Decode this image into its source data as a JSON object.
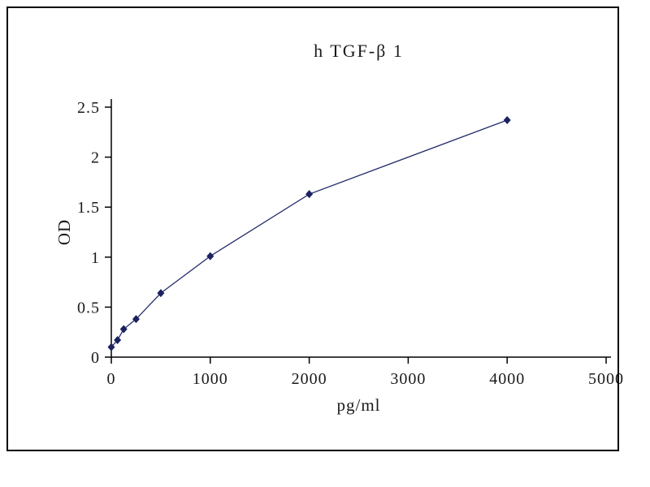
{
  "chart_data": {
    "type": "line",
    "title": "h TGF-β 1",
    "xlabel": "pg/ml",
    "ylabel": "OD",
    "x": [
      0,
      62.5,
      125,
      250,
      500,
      1000,
      2000,
      4000
    ],
    "y": [
      0.1,
      0.17,
      0.28,
      0.38,
      0.64,
      1.01,
      1.63,
      2.37
    ],
    "xlim": [
      0,
      5000
    ],
    "ylim": [
      0,
      2.5
    ],
    "x_ticks": [
      0,
      1000,
      2000,
      3000,
      4000,
      5000
    ],
    "x_tick_labels": [
      "0",
      "1000",
      "2000",
      "3000",
      "4000",
      "5000"
    ],
    "y_ticks": [
      0,
      0.5,
      1,
      1.5,
      2,
      2.5
    ],
    "y_tick_labels": [
      "0",
      "0.5",
      "1",
      "1.5",
      "2",
      "2.5"
    ],
    "grid": false,
    "legend": "none",
    "marker": "diamond",
    "line_color": "#272f6b",
    "marker_color": "#1c2260",
    "axis_color": "#000000"
  }
}
